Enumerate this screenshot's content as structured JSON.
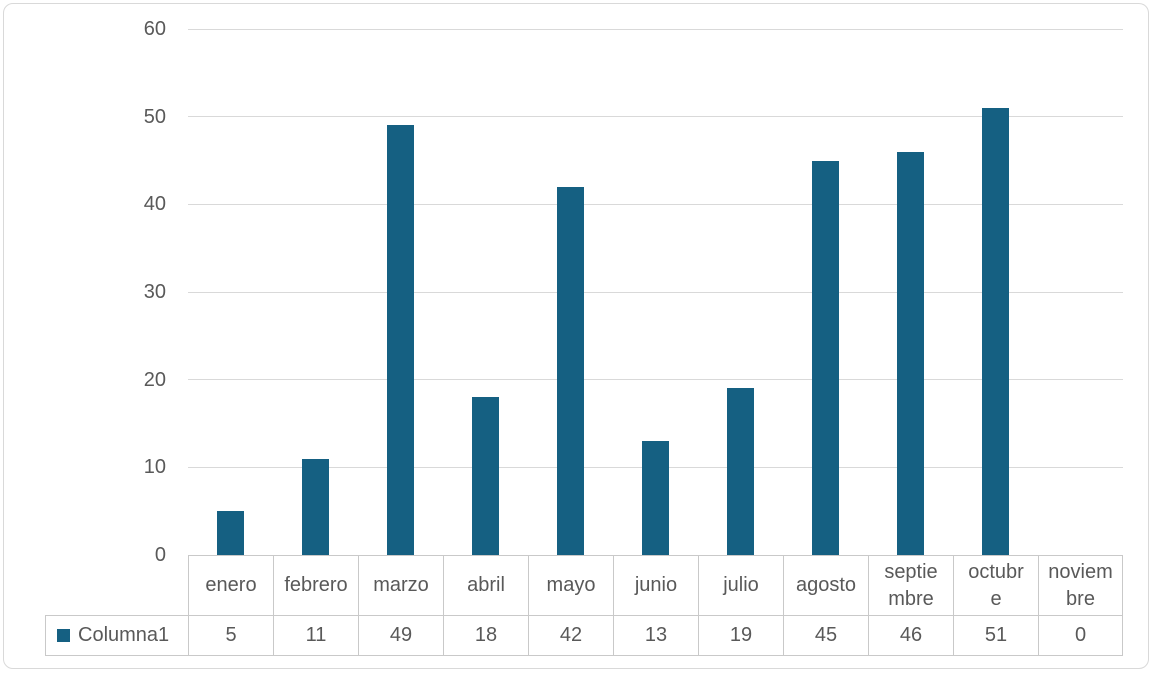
{
  "chart_data": {
    "type": "bar",
    "title": "",
    "xlabel": "",
    "ylabel": "",
    "categories": [
      "enero",
      "febrero",
      "marzo",
      "abril",
      "mayo",
      "junio",
      "julio",
      "agosto",
      "septiembre",
      "octubre",
      "noviembre"
    ],
    "series": [
      {
        "name": "Columna1",
        "values": [
          5,
          11,
          49,
          18,
          42,
          13,
          19,
          45,
          46,
          51,
          0
        ]
      }
    ],
    "ylim": [
      0,
      60
    ],
    "yticks": [
      0,
      10,
      20,
      30,
      40,
      50,
      60
    ],
    "grid": "horizontal",
    "legend_position": "data-table-left",
    "colors": {
      "bar": "#156082",
      "axis_text": "#595959",
      "gridline": "#D9D9D9",
      "table_border": "#C9C9C9",
      "frame_border": "#D9D9D9",
      "background": "#FFFFFF"
    }
  }
}
